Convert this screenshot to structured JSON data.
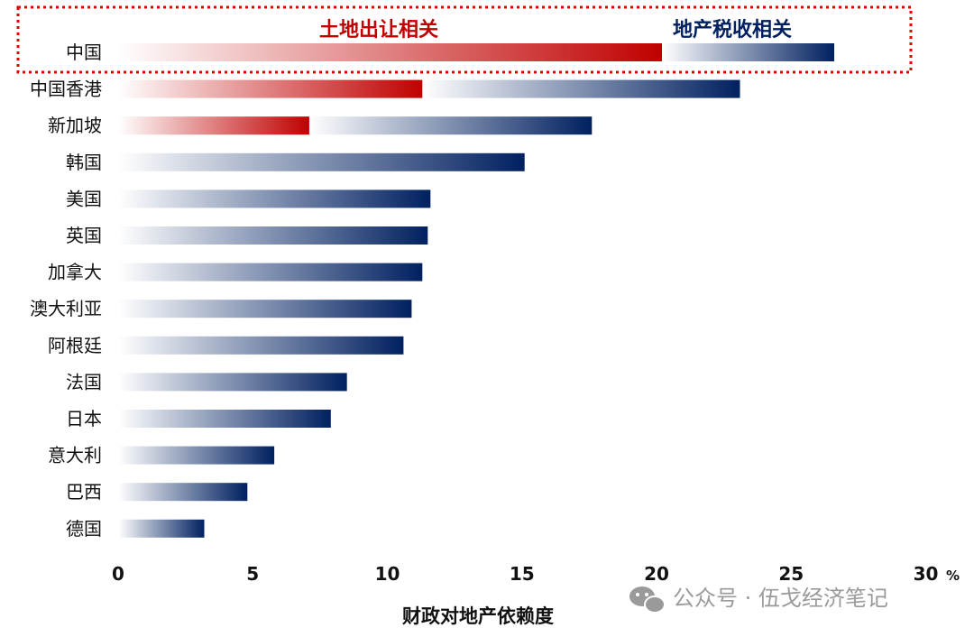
{
  "chart_data": {
    "type": "bar",
    "orientation": "horizontal",
    "stacked": true,
    "categories": [
      "中国",
      "中国香港",
      "新加坡",
      "韩国",
      "美国",
      "英国",
      "加拿大",
      "澳大利亚",
      "阿根廷",
      "法国",
      "日本",
      "意大利",
      "巴西",
      "德国"
    ],
    "series": [
      {
        "name": "土地出让相关",
        "color": "#c00000",
        "values": [
          20.2,
          11.3,
          7.1,
          0,
          0,
          0,
          0,
          0,
          0,
          0,
          0,
          0,
          0,
          0
        ]
      },
      {
        "name": "地产税收相关",
        "color": "#002060",
        "values": [
          6.4,
          11.8,
          10.5,
          15.1,
          11.6,
          11.5,
          11.3,
          10.9,
          10.6,
          8.5,
          7.9,
          5.8,
          4.8,
          3.2
        ]
      }
    ],
    "xticks": [
      "0",
      "5",
      "10",
      "15",
      "20",
      "25",
      "30"
    ],
    "xlim": [
      0,
      30
    ],
    "xlabel": "财政对地产依赖度",
    "unit": "%",
    "highlight": "中国"
  },
  "watermark": {
    "text": "公众号 · 伍戈经济笔记",
    "icon": "wechat-icon"
  }
}
